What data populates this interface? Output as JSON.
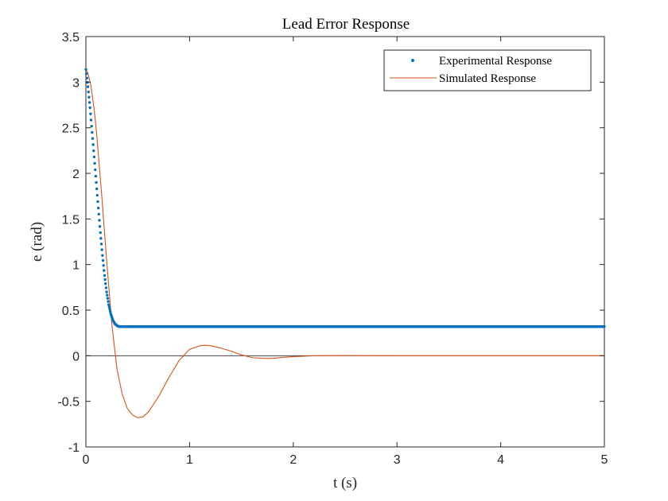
{
  "chart_data": {
    "type": "line",
    "title": "Lead Error Response",
    "xlabel": "t (s)",
    "ylabel": "e (rad)",
    "xlim": [
      0,
      5
    ],
    "ylim": [
      -1,
      3.5
    ],
    "xticks": [
      0,
      1,
      2,
      3,
      4,
      5
    ],
    "xtick_labels": [
      "0",
      "1",
      "2",
      "3",
      "4",
      "5"
    ],
    "yticks": [
      -1,
      -0.5,
      0,
      0.5,
      1,
      1.5,
      2,
      2.5,
      3,
      3.5
    ],
    "ytick_labels": [
      "-1",
      "-0.5",
      "0",
      "0.5",
      "1",
      "1.5",
      "2",
      "2.5",
      "3",
      "3.5"
    ],
    "grid": false,
    "legend_position": "top-right",
    "colors": {
      "experimental": "#0072BD",
      "simulated": "#D95319",
      "zero_line": "#262626",
      "axes": "#262626"
    },
    "series": [
      {
        "name": "Experimental Response",
        "style": "dotted-markers",
        "x": [
          0,
          0.02,
          0.04,
          0.06,
          0.08,
          0.1,
          0.12,
          0.14,
          0.16,
          0.18,
          0.2,
          0.22,
          0.24,
          0.26,
          0.28,
          0.3,
          0.32,
          0.34,
          0.36,
          0.4,
          0.5,
          1.0,
          2.0,
          3.0,
          4.0,
          5.0
        ],
        "y": [
          3.14,
          2.95,
          2.72,
          2.45,
          2.18,
          1.9,
          1.62,
          1.35,
          1.1,
          0.88,
          0.7,
          0.56,
          0.46,
          0.39,
          0.35,
          0.33,
          0.32,
          0.32,
          0.32,
          0.32,
          0.32,
          0.32,
          0.32,
          0.32,
          0.32,
          0.32
        ]
      },
      {
        "name": "Simulated Response",
        "style": "line",
        "x": [
          0,
          0.02,
          0.05,
          0.08,
          0.1,
          0.15,
          0.2,
          0.25,
          0.3,
          0.35,
          0.4,
          0.45,
          0.5,
          0.55,
          0.6,
          0.7,
          0.8,
          0.9,
          1.0,
          1.1,
          1.15,
          1.2,
          1.3,
          1.4,
          1.5,
          1.6,
          1.7,
          1.75,
          1.8,
          1.9,
          2.0,
          2.2,
          2.5,
          3.0,
          4.0,
          5.0
        ],
        "y": [
          3.14,
          3.1,
          2.95,
          2.7,
          2.48,
          1.8,
          1.05,
          0.35,
          -0.15,
          -0.42,
          -0.58,
          -0.65,
          -0.68,
          -0.67,
          -0.62,
          -0.45,
          -0.24,
          -0.05,
          0.07,
          0.11,
          0.115,
          0.11,
          0.085,
          0.05,
          0.01,
          -0.02,
          -0.028,
          -0.03,
          -0.028,
          -0.018,
          -0.01,
          0.0,
          0.003,
          0.0,
          0.0,
          0.0
        ]
      }
    ]
  }
}
